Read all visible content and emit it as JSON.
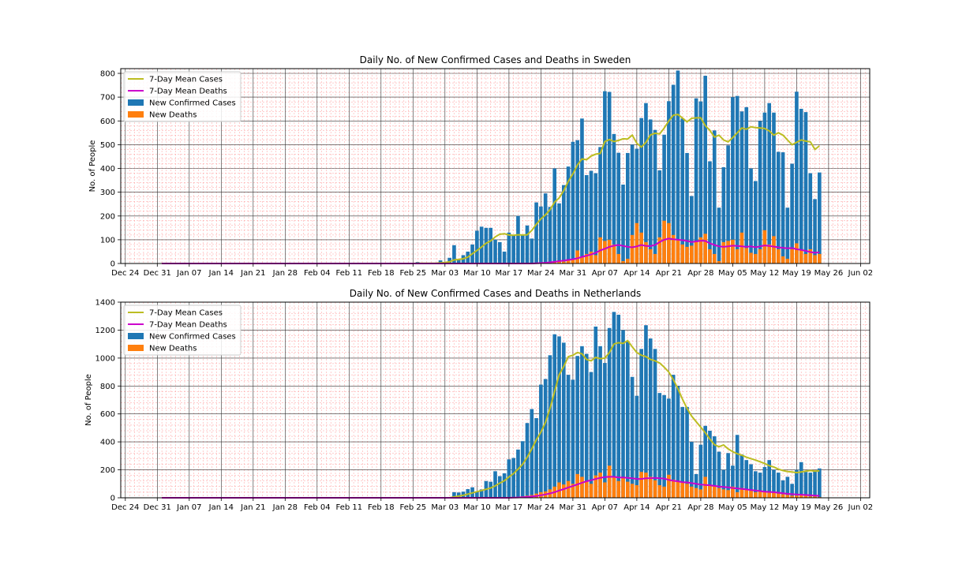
{
  "figure": {
    "colors": {
      "cases_bar": "#1f77b4",
      "deaths_bar": "#ff7f0e",
      "mean_cases_line": "#bcbd22",
      "mean_deaths_line": "#cc00cc",
      "major_grid": "#333333",
      "minor_grid": "#ff9999"
    }
  },
  "chart_data": [
    {
      "type": "bar",
      "title": "Daily No. of New Confirmed Cases and Deaths in Sweden",
      "xlabel": "",
      "ylabel": "No. of People",
      "ylim": [
        0,
        820
      ],
      "yticks": [
        0,
        100,
        200,
        300,
        400,
        500,
        600,
        700,
        800
      ],
      "xlim": [
        "2019-12-23",
        "2020-06-04"
      ],
      "xticks": [
        "Dec 24",
        "Dec 31",
        "Jan 07",
        "Jan 14",
        "Jan 21",
        "Jan 28",
        "Feb 04",
        "Feb 11",
        "Feb 18",
        "Feb 25",
        "Mar 03",
        "Mar 10",
        "Mar 17",
        "Mar 24",
        "Mar 31",
        "Apr 07",
        "Apr 14",
        "Apr 21",
        "Apr 28",
        "May 05",
        "May 12",
        "May 19",
        "May 26",
        "Jun 02"
      ],
      "grid": "major and minor",
      "legend_placement": "top-left",
      "legend": [
        "7-Day Mean Cases",
        "7-Day Mean Deaths",
        "New Confirmed Cases",
        "New Deaths"
      ],
      "x_start": "2020-01-01",
      "x_end": "2020-05-26",
      "cases": [
        0,
        0,
        0,
        0,
        0,
        0,
        0,
        0,
        0,
        0,
        0,
        0,
        0,
        0,
        0,
        0,
        0,
        0,
        0,
        0,
        0,
        0,
        0,
        0,
        0,
        0,
        0,
        0,
        0,
        0,
        0,
        1,
        0,
        0,
        0,
        0,
        0,
        0,
        0,
        0,
        0,
        0,
        0,
        0,
        0,
        0,
        0,
        0,
        0,
        0,
        0,
        0,
        0,
        0,
        0,
        1,
        6,
        0,
        0,
        0,
        1,
        13,
        5,
        24,
        77,
        20,
        35,
        50,
        80,
        138,
        155,
        150,
        150,
        100,
        90,
        50,
        130,
        120,
        200,
        120,
        160,
        105,
        257,
        240,
        295,
        238,
        400,
        253,
        330,
        408,
        512,
        519,
        610,
        372,
        390,
        380,
        490,
        725,
        722,
        545,
        466,
        332,
        465,
        500,
        483,
        612,
        675,
        606,
        562,
        392,
        542,
        683,
        752,
        812,
        610,
        465,
        284,
        695,
        682,
        790,
        430,
        560,
        235,
        405,
        497,
        700,
        705,
        640,
        658,
        400,
        347,
        600,
        635,
        675,
        635,
        470,
        468,
        235,
        420,
        723,
        651,
        637,
        380,
        271,
        383
      ],
      "deaths": [
        0,
        0,
        0,
        0,
        0,
        0,
        0,
        0,
        0,
        0,
        0,
        0,
        0,
        0,
        0,
        0,
        0,
        0,
        0,
        0,
        0,
        0,
        0,
        0,
        0,
        0,
        0,
        0,
        0,
        0,
        0,
        0,
        0,
        0,
        0,
        0,
        0,
        0,
        0,
        0,
        0,
        0,
        0,
        0,
        0,
        0,
        0,
        0,
        0,
        0,
        0,
        0,
        0,
        0,
        0,
        0,
        0,
        0,
        0,
        0,
        0,
        0,
        0,
        0,
        0,
        0,
        0,
        0,
        0,
        0,
        0,
        0,
        0,
        0,
        0,
        0,
        0,
        0,
        0,
        0,
        0,
        0,
        0,
        0,
        2,
        5,
        10,
        12,
        8,
        15,
        20,
        55,
        30,
        40,
        50,
        35,
        110,
        95,
        100,
        80,
        40,
        10,
        20,
        120,
        170,
        130,
        90,
        60,
        40,
        110,
        180,
        170,
        120,
        100,
        80,
        70,
        75,
        90,
        110,
        125,
        60,
        40,
        10,
        90,
        95,
        100,
        60,
        130,
        65,
        45,
        40,
        60,
        140,
        80,
        115,
        60,
        30,
        20,
        60,
        85,
        55,
        40,
        60,
        35,
        40
      ],
      "mean_cases": [
        0,
        0,
        0,
        0,
        0,
        0,
        0,
        0,
        0,
        0,
        0,
        0,
        0,
        0,
        0,
        0,
        0,
        0,
        0,
        0,
        0,
        0,
        0,
        0,
        0,
        0,
        0,
        0,
        0,
        0,
        0,
        0,
        0,
        0,
        0,
        0,
        0,
        0,
        0,
        0,
        0,
        0,
        0,
        0,
        0,
        0,
        0,
        0,
        0,
        0,
        0,
        0,
        0,
        0,
        0,
        0,
        1,
        1,
        1,
        1,
        1,
        3,
        4,
        7,
        15,
        17,
        20,
        27,
        41,
        55,
        69,
        85,
        95,
        112,
        123,
        125,
        120,
        119,
        121,
        120,
        121,
        139,
        165,
        188,
        205,
        226,
        258,
        276,
        306,
        346,
        377,
        415,
        440,
        437,
        452,
        460,
        463,
        513,
        522,
        513,
        518,
        525,
        524,
        540,
        506,
        490,
        510,
        541,
        548,
        545,
        570,
        600,
        624,
        627,
        612,
        596,
        611,
        613,
        613,
        580,
        560,
        532,
        540,
        520,
        512,
        530,
        550,
        570,
        565,
        575,
        572,
        570,
        568,
        558,
        540,
        550,
        540,
        520,
        500,
        510,
        520,
        515,
        512,
        480,
        495
      ],
      "mean_deaths": [
        0,
        0,
        0,
        0,
        0,
        0,
        0,
        0,
        0,
        0,
        0,
        0,
        0,
        0,
        0,
        0,
        0,
        0,
        0,
        0,
        0,
        0,
        0,
        0,
        0,
        0,
        0,
        0,
        0,
        0,
        0,
        0,
        0,
        0,
        0,
        0,
        0,
        0,
        0,
        0,
        0,
        0,
        0,
        0,
        0,
        0,
        0,
        0,
        0,
        0,
        0,
        0,
        0,
        0,
        0,
        0,
        0,
        0,
        0,
        0,
        0,
        0,
        0,
        0,
        0,
        0,
        0,
        0,
        0,
        0,
        0,
        0,
        0,
        0,
        0,
        0,
        0,
        0,
        0,
        0,
        0,
        0,
        1,
        2,
        3,
        5,
        7,
        10,
        12,
        15,
        18,
        22,
        28,
        33,
        38,
        45,
        55,
        62,
        70,
        75,
        78,
        74,
        70,
        68,
        72,
        78,
        74,
        73,
        78,
        90,
        100,
        105,
        102,
        100,
        98,
        95,
        90,
        93,
        96,
        95,
        85,
        78,
        72,
        70,
        72,
        75,
        74,
        72,
        70,
        72,
        68,
        72,
        76,
        74,
        71,
        68,
        66,
        64,
        65,
        60,
        57,
        53,
        48,
        45,
        47
      ]
    },
    {
      "type": "bar",
      "title": "Daily No. of New Confirmed Cases and Deaths in Netherlands",
      "xlabel": "",
      "ylabel": "No. of People",
      "ylim": [
        0,
        1400
      ],
      "yticks": [
        0,
        200,
        400,
        600,
        800,
        1000,
        1200,
        1400
      ],
      "xlim": [
        "2019-12-23",
        "2020-06-04"
      ],
      "xticks": [
        "Dec 24",
        "Dec 31",
        "Jan 07",
        "Jan 14",
        "Jan 21",
        "Jan 28",
        "Feb 04",
        "Feb 11",
        "Feb 18",
        "Feb 25",
        "Mar 03",
        "Mar 10",
        "Mar 17",
        "Mar 24",
        "Mar 31",
        "Apr 07",
        "Apr 14",
        "Apr 21",
        "Apr 28",
        "May 05",
        "May 12",
        "May 19",
        "May 26",
        "Jun 02"
      ],
      "grid": "major and minor",
      "legend_placement": "top-left",
      "legend": [
        "7-Day Mean Cases",
        "7-Day Mean Deaths",
        "New Confirmed Cases",
        "New Deaths"
      ],
      "x_start": "2020-01-01",
      "x_end": "2020-05-26",
      "cases": [
        0,
        0,
        0,
        0,
        0,
        0,
        0,
        0,
        0,
        0,
        0,
        0,
        0,
        0,
        0,
        0,
        0,
        0,
        0,
        0,
        0,
        0,
        0,
        0,
        0,
        0,
        0,
        0,
        0,
        0,
        0,
        0,
        0,
        0,
        0,
        0,
        0,
        0,
        0,
        0,
        0,
        0,
        0,
        0,
        0,
        0,
        0,
        0,
        0,
        0,
        0,
        0,
        0,
        0,
        0,
        0,
        0,
        0,
        0,
        0,
        0,
        1,
        0,
        2,
        40,
        38,
        44,
        62,
        75,
        45,
        60,
        120,
        115,
        190,
        155,
        175,
        275,
        285,
        345,
        405,
        535,
        635,
        570,
        810,
        850,
        1020,
        1170,
        1155,
        1110,
        880,
        845,
        1015,
        1085,
        1030,
        900,
        1225,
        1085,
        965,
        1215,
        1330,
        1310,
        1200,
        1120,
        865,
        730,
        1065,
        1235,
        1140,
        1065,
        750,
        735,
        710,
        880,
        800,
        650,
        650,
        400,
        170,
        380,
        515,
        480,
        440,
        330,
        200,
        320,
        230,
        450,
        310,
        270,
        240,
        190,
        180,
        220,
        270,
        200,
        180,
        125,
        150,
        100,
        200,
        255,
        185,
        180,
        190,
        210
      ],
      "deaths": [
        0,
        0,
        0,
        0,
        0,
        0,
        0,
        0,
        0,
        0,
        0,
        0,
        0,
        0,
        0,
        0,
        0,
        0,
        0,
        0,
        0,
        0,
        0,
        0,
        0,
        0,
        0,
        0,
        0,
        0,
        0,
        0,
        0,
        0,
        0,
        0,
        0,
        0,
        0,
        0,
        0,
        0,
        0,
        0,
        0,
        0,
        0,
        0,
        0,
        0,
        0,
        0,
        0,
        0,
        0,
        0,
        0,
        0,
        0,
        0,
        0,
        0,
        0,
        0,
        0,
        0,
        0,
        0,
        0,
        0,
        0,
        0,
        0,
        0,
        0,
        0,
        2,
        3,
        5,
        10,
        15,
        20,
        30,
        40,
        45,
        60,
        80,
        110,
        95,
        120,
        100,
        170,
        150,
        120,
        100,
        160,
        180,
        110,
        230,
        150,
        120,
        140,
        115,
        100,
        90,
        185,
        180,
        150,
        125,
        90,
        80,
        165,
        130,
        120,
        110,
        100,
        80,
        70,
        60,
        150,
        90,
        85,
        70,
        60,
        55,
        80,
        40,
        70,
        60,
        50,
        40,
        50,
        45,
        40,
        35,
        30,
        25,
        20,
        15,
        15,
        20,
        15,
        10,
        10,
        5
      ],
      "mean_cases": [
        0,
        0,
        0,
        0,
        0,
        0,
        0,
        0,
        0,
        0,
        0,
        0,
        0,
        0,
        0,
        0,
        0,
        0,
        0,
        0,
        0,
        0,
        0,
        0,
        0,
        0,
        0,
        0,
        0,
        0,
        0,
        0,
        0,
        0,
        0,
        0,
        0,
        0,
        0,
        0,
        0,
        0,
        0,
        0,
        0,
        0,
        0,
        0,
        0,
        0,
        0,
        0,
        0,
        0,
        0,
        0,
        0,
        0,
        0,
        0,
        0,
        0,
        0,
        0,
        6,
        12,
        18,
        26,
        35,
        44,
        52,
        61,
        70,
        85,
        105,
        122,
        149,
        173,
        205,
        240,
        290,
        350,
        415,
        470,
        540,
        640,
        760,
        880,
        940,
        1010,
        1020,
        1040,
        1030,
        990,
        980,
        1005,
        995,
        1000,
        1040,
        1100,
        1110,
        1105,
        1125,
        1080,
        1040,
        1020,
        1010,
        990,
        980,
        965,
        935,
        900,
        845,
        780,
        705,
        640,
        585,
        545,
        505,
        465,
        420,
        380,
        365,
        378,
        350,
        330,
        315,
        305,
        290,
        280,
        270,
        258,
        245,
        230,
        220,
        205,
        195,
        188,
        185,
        180,
        185,
        190,
        195,
        190,
        193
      ],
      "mean_deaths": [
        0,
        0,
        0,
        0,
        0,
        0,
        0,
        0,
        0,
        0,
        0,
        0,
        0,
        0,
        0,
        0,
        0,
        0,
        0,
        0,
        0,
        0,
        0,
        0,
        0,
        0,
        0,
        0,
        0,
        0,
        0,
        0,
        0,
        0,
        0,
        0,
        0,
        0,
        0,
        0,
        0,
        0,
        0,
        0,
        0,
        0,
        0,
        0,
        0,
        0,
        0,
        0,
        0,
        0,
        0,
        0,
        0,
        0,
        0,
        0,
        0,
        0,
        0,
        0,
        0,
        0,
        0,
        0,
        0,
        0,
        0,
        0,
        0,
        0,
        0,
        0,
        0,
        1,
        2,
        4,
        6,
        9,
        13,
        18,
        24,
        31,
        40,
        52,
        62,
        74,
        84,
        96,
        108,
        118,
        126,
        135,
        143,
        148,
        150,
        150,
        145,
        145,
        143,
        140,
        135,
        135,
        140,
        140,
        142,
        140,
        138,
        128,
        122,
        118,
        112,
        110,
        105,
        100,
        95,
        92,
        90,
        85,
        80,
        78,
        75,
        70,
        67,
        64,
        60,
        56,
        52,
        48,
        44,
        42,
        40,
        36,
        32,
        28,
        26,
        24,
        22,
        20,
        18,
        16,
        14
      ]
    }
  ]
}
